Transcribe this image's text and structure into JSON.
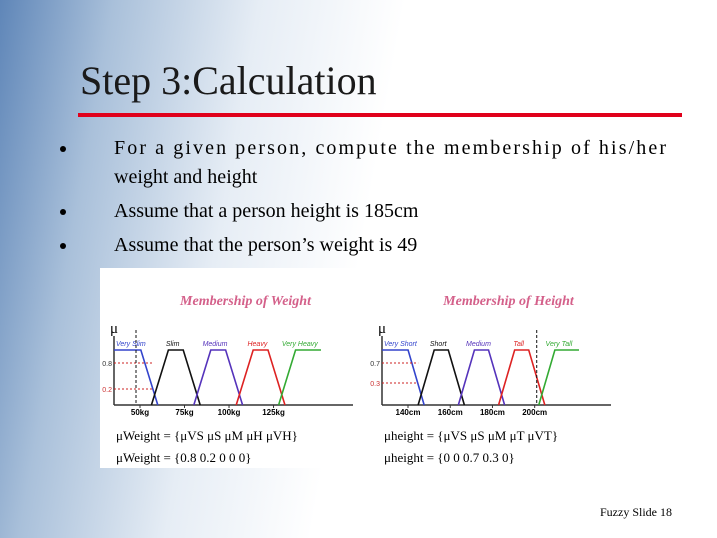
{
  "title": "Step 3:Calculation",
  "bullets": [
    [
      "For a given person, compute the membership of his/her",
      "weight and height"
    ],
    [
      "Assume that a person height is 185cm"
    ],
    [
      "Assume that the person’s weight is 49"
    ]
  ],
  "figure": {
    "weight": {
      "title": "Membership of Weight",
      "axis_symbol": "μ",
      "sets": [
        "Very Slim",
        "Slim",
        "Medium",
        "Heavy",
        "Very Heavy"
      ],
      "y_labels": [
        "0.8",
        "0.2"
      ],
      "x_labels": [
        "50kg",
        "75kg",
        "100kg",
        "125kg"
      ],
      "formula_1": "μWeight = {μVS   μS   μM   μH   μVH}",
      "formula_2": "μWeight = {0.8  0.2   0     0     0}"
    },
    "height": {
      "title": "Membership of Height",
      "axis_symbol": "μ",
      "sets": [
        "Very Short",
        "Short",
        "Medium",
        "Tall",
        "Very Tall"
      ],
      "y_labels": [
        "0.7",
        "0.3"
      ],
      "x_labels": [
        "140cm",
        "160cm",
        "180cm",
        "200cm"
      ],
      "formula_1": "μheight = {μVS   μS   μM   μT   μVT}",
      "formula_2": "μheight = {0     0    0.7  0.3   0}"
    }
  },
  "footer": "Fuzzy Slide 18"
}
